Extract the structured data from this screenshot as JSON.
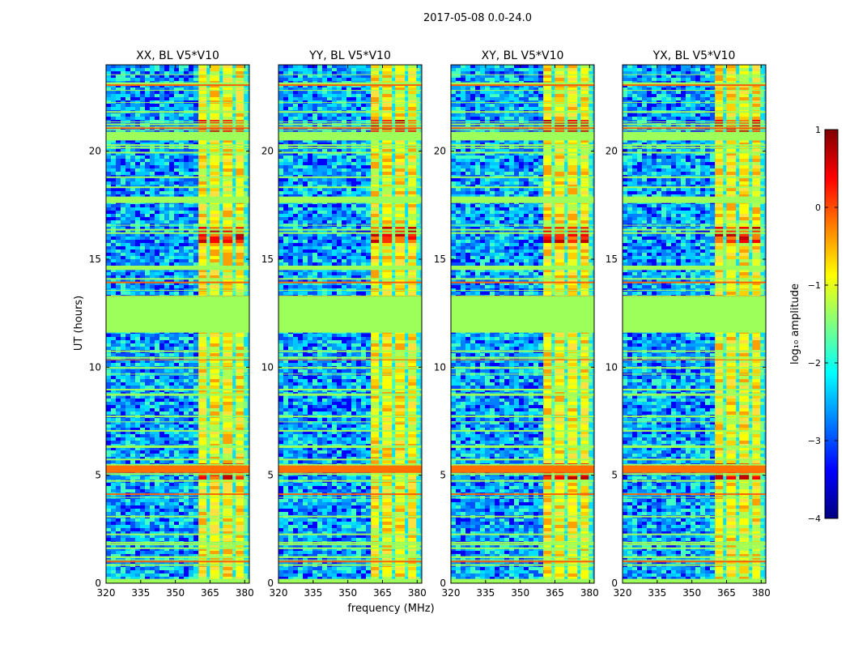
{
  "chart_data": {
    "type": "heatmap",
    "title": "2017-05-08 0.0-24.0",
    "xlabel": "frequency (MHz)",
    "ylabel": "UT (hours)",
    "xlim": [
      320,
      382
    ],
    "ylim": [
      0,
      24
    ],
    "xticks": [
      320,
      335,
      350,
      365,
      380
    ],
    "xtick_labels": [
      "320",
      "335",
      "350",
      "365",
      "380"
    ],
    "yticks": [
      0,
      5,
      10,
      15,
      20
    ],
    "ytick_labels": [
      "0",
      "5",
      "10",
      "15",
      "20"
    ],
    "panels": [
      {
        "name": "XX",
        "title": "XX, BL V5*V10"
      },
      {
        "name": "YY",
        "title": "YY, BL V5*V10"
      },
      {
        "name": "XY",
        "title": "XY, BL V5*V10"
      },
      {
        "name": "YX",
        "title": "YX, BL V5*V10"
      }
    ],
    "flagged_ut_range": [
      11.6,
      13.3
    ],
    "bright_band_mhz": [
      360,
      382
    ],
    "strong_rfi_ut_hours": [
      5.3,
      21.2,
      16.2
    ],
    "colorbar": {
      "label": "log₁₀ amplitude",
      "range": [
        -4,
        1
      ],
      "ticks": [
        1,
        0,
        -1,
        -2,
        -3,
        -4
      ],
      "tick_labels": [
        "1",
        "0",
        "−1",
        "−2",
        "−3",
        "−4"
      ],
      "colormap": "jet"
    }
  },
  "colors": {
    "flagged": "#9cff5a",
    "jet": [
      "#00007f",
      "#0000ff",
      "#0080ff",
      "#00ffff",
      "#80ff80",
      "#ffff00",
      "#ff8000",
      "#ff0000",
      "#7f0000"
    ]
  }
}
